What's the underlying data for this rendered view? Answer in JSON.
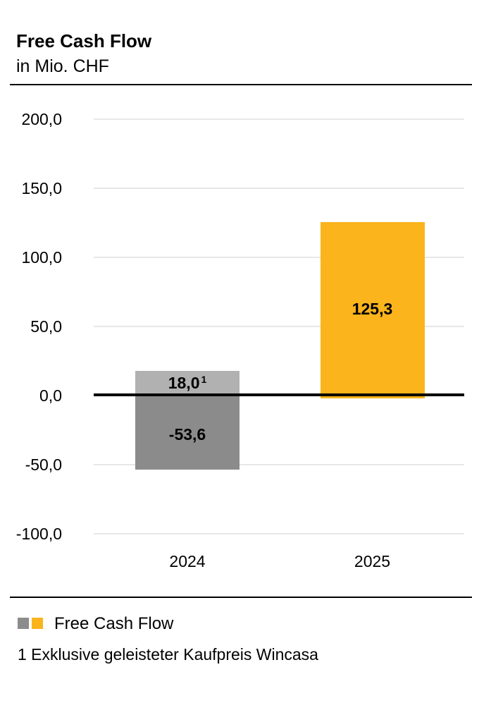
{
  "header": {
    "title": "Free Cash Flow",
    "subtitle": "in Mio. CHF"
  },
  "chart_data": {
    "type": "bar",
    "title": "Free Cash Flow",
    "unit": "in Mio. CHF",
    "categories": [
      "2024",
      "2025"
    ],
    "bars": [
      {
        "category": "2024",
        "segments": [
          {
            "value": 18.0,
            "label": "18,0",
            "superscript": "1",
            "color": "#b1b1b1"
          },
          {
            "value": -53.6,
            "label": "-53,6",
            "superscript": "",
            "color": "#8b8b8b"
          }
        ]
      },
      {
        "category": "2025",
        "segments": [
          {
            "value": 125.3,
            "label": "125,3",
            "superscript": "",
            "color": "#fbb41c"
          }
        ]
      }
    ],
    "yaxis": {
      "min": -100,
      "max": 200,
      "tick_step": 50,
      "grid": true,
      "ticks": [
        {
          "value": 200,
          "label": "200,0"
        },
        {
          "value": 150,
          "label": "150,0"
        },
        {
          "value": 100,
          "label": "100,0"
        },
        {
          "value": 50,
          "label": "50,0"
        },
        {
          "value": 0,
          "label": "0,0"
        },
        {
          "value": -50,
          "label": "-50,0"
        },
        {
          "value": -100,
          "label": "-100,0"
        }
      ]
    },
    "legend": {
      "position": "bottom",
      "label": "Free Cash Flow",
      "swatch_colors": [
        "#8c8c8c",
        "#fbb41c"
      ]
    },
    "footnote": "1 Exklusive geleisteter Kaufpreis Wincasa",
    "colors": {
      "grid": "#e7e7e7",
      "zero_line": "#000000",
      "text": "#000000"
    }
  }
}
